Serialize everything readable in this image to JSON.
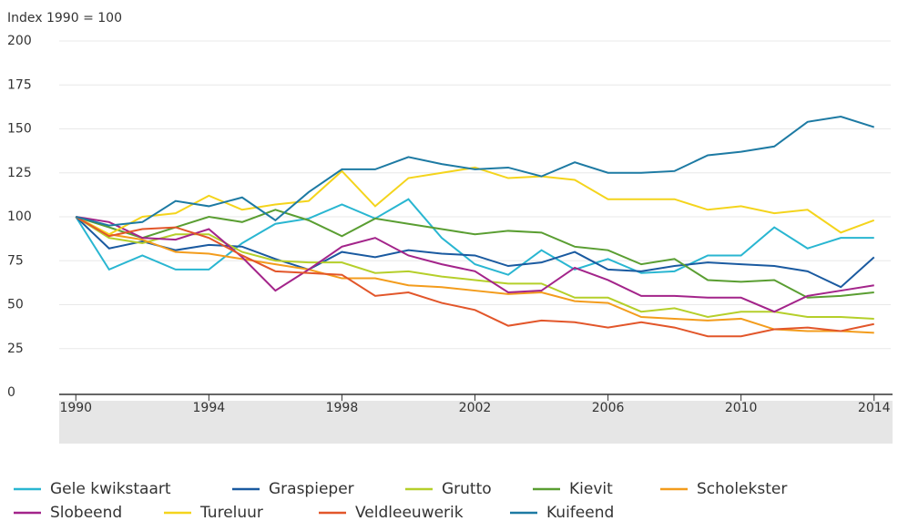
{
  "chart_data": {
    "type": "line",
    "y_label": "Index 1990 = 100",
    "x": [
      1990,
      1991,
      1992,
      1993,
      1994,
      1995,
      1996,
      1997,
      1998,
      1999,
      2000,
      2001,
      2002,
      2003,
      2004,
      2005,
      2006,
      2007,
      2008,
      2009,
      2010,
      2011,
      2012,
      2013,
      2014
    ],
    "series": [
      {
        "name": "Gele kwikstaart",
        "color": "#29b6d1",
        "values": [
          100,
          70,
          78,
          70,
          70,
          85,
          96,
          99,
          107,
          99,
          110,
          88,
          73,
          67,
          81,
          70,
          76,
          68,
          69,
          78,
          78,
          94,
          82,
          88,
          88
        ]
      },
      {
        "name": "Graspieper",
        "color": "#1a5aa0",
        "values": [
          100,
          82,
          86,
          81,
          84,
          83,
          76,
          70,
          80,
          77,
          81,
          79,
          78,
          72,
          74,
          80,
          70,
          69,
          72,
          74,
          73,
          72,
          69,
          60,
          77
        ]
      },
      {
        "name": "Grutto",
        "color": "#b5cf2a",
        "values": [
          100,
          88,
          85,
          90,
          90,
          80,
          75,
          74,
          74,
          68,
          69,
          66,
          64,
          62,
          62,
          54,
          54,
          46,
          48,
          43,
          46,
          46,
          43,
          43,
          42
        ]
      },
      {
        "name": "Kievit",
        "color": "#5a9e32",
        "values": [
          100,
          94,
          88,
          94,
          100,
          97,
          104,
          98,
          89,
          99,
          96,
          93,
          90,
          92,
          91,
          83,
          81,
          73,
          76,
          64,
          63,
          64,
          54,
          55,
          57
        ]
      },
      {
        "name": "Scholekster",
        "color": "#f39c1c",
        "values": [
          100,
          90,
          87,
          80,
          79,
          76,
          73,
          70,
          65,
          65,
          61,
          60,
          58,
          56,
          57,
          52,
          51,
          43,
          42,
          41,
          42,
          36,
          35,
          35,
          34
        ]
      },
      {
        "name": "Slobeend",
        "color": "#a3248a",
        "values": [
          100,
          97,
          88,
          87,
          93,
          77,
          58,
          70,
          83,
          88,
          78,
          73,
          69,
          57,
          58,
          71,
          64,
          55,
          55,
          54,
          54,
          46,
          55,
          58,
          61
        ]
      },
      {
        "name": "Tureluur",
        "color": "#f4d41c",
        "values": [
          100,
          90,
          100,
          102,
          112,
          104,
          107,
          109,
          126,
          106,
          122,
          125,
          128,
          122,
          123,
          121,
          110,
          110,
          110,
          104,
          106,
          102,
          104,
          91,
          98
        ]
      },
      {
        "name": "Veldleeuwerik",
        "color": "#e2562a",
        "values": [
          100,
          89,
          93,
          94,
          88,
          78,
          69,
          68,
          67,
          55,
          57,
          51,
          47,
          38,
          41,
          40,
          37,
          40,
          37,
          32,
          32,
          36,
          37,
          35,
          39
        ]
      },
      {
        "name": "Kuifeend",
        "color": "#1d7aa3",
        "values": [
          100,
          95,
          97,
          109,
          106,
          111,
          98,
          114,
          127,
          127,
          134,
          130,
          127,
          128,
          123,
          131,
          125,
          125,
          126,
          135,
          137,
          140,
          154,
          157,
          151
        ]
      }
    ],
    "xlim": [
      1989.5,
      2014.5
    ],
    "xticks": [
      1990,
      1994,
      1998,
      2002,
      2006,
      2010,
      2014
    ],
    "ylim": [
      0,
      200
    ],
    "yticks": [
      0,
      25,
      50,
      75,
      100,
      125,
      150,
      175,
      200
    ],
    "grid": true
  }
}
